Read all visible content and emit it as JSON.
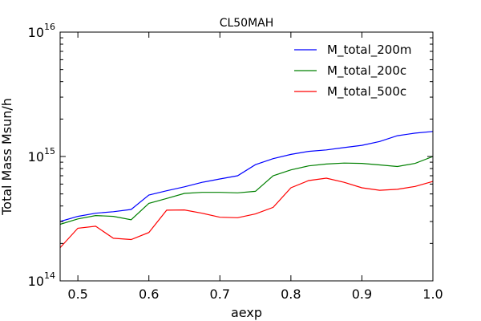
{
  "chart_data": {
    "type": "line",
    "title": "CL50MAH",
    "xlabel": "aexp",
    "ylabel": "Total Mass Msun/h",
    "xlim": [
      0.475,
      1.0
    ],
    "ylim": [
      100000000000000.0,
      1e+16
    ],
    "yscale": "log",
    "grid": false,
    "legend_position": "top-right",
    "x_ticks": [
      0.5,
      0.6,
      0.7,
      0.8,
      0.9,
      1.0
    ],
    "x_tick_labels": [
      "0.5",
      "0.6",
      "0.7",
      "0.8",
      "0.9",
      "1.0"
    ],
    "y_tick_labels": [
      {
        "base": "10",
        "exp": "14"
      },
      {
        "base": "10",
        "exp": "15"
      },
      {
        "base": "10",
        "exp": "16"
      }
    ],
    "x": [
      0.475,
      0.5,
      0.525,
      0.55,
      0.575,
      0.6,
      0.625,
      0.65,
      0.675,
      0.7,
      0.725,
      0.75,
      0.775,
      0.8,
      0.825,
      0.85,
      0.875,
      0.9,
      0.925,
      0.95,
      0.975,
      1.0
    ],
    "series": [
      {
        "name": "M_total_200m",
        "color": "#0000ff",
        "values": [
          300000000000000.0,
          330000000000000.0,
          350000000000000.0,
          360000000000000.0,
          375000000000000.0,
          490000000000000.0,
          530000000000000.0,
          570000000000000.0,
          620000000000000.0,
          660000000000000.0,
          700000000000000.0,
          860000000000000.0,
          960000000000000.0,
          1040000000000000.0,
          1100000000000000.0,
          1130000000000000.0,
          1180000000000000.0,
          1230000000000000.0,
          1320000000000000.0,
          1470000000000000.0,
          1540000000000000.0,
          1590000000000000.0
        ]
      },
      {
        "name": "M_total_200c",
        "color": "#008000",
        "values": [
          285000000000000.0,
          315000000000000.0,
          335000000000000.0,
          330000000000000.0,
          310000000000000.0,
          420000000000000.0,
          460000000000000.0,
          505000000000000.0,
          515000000000000.0,
          515000000000000.0,
          510000000000000.0,
          525000000000000.0,
          700000000000000.0,
          780000000000000.0,
          840000000000000.0,
          870000000000000.0,
          885000000000000.0,
          880000000000000.0,
          855000000000000.0,
          830000000000000.0,
          880000000000000.0,
          1000000000000000.0
        ]
      },
      {
        "name": "M_total_500c",
        "color": "#ff0000",
        "values": [
          185000000000000.0,
          265000000000000.0,
          275000000000000.0,
          220000000000000.0,
          215000000000000.0,
          245000000000000.0,
          370000000000000.0,
          372000000000000.0,
          350000000000000.0,
          325000000000000.0,
          322000000000000.0,
          345000000000000.0,
          390000000000000.0,
          560000000000000.0,
          640000000000000.0,
          670000000000000.0,
          620000000000000.0,
          560000000000000.0,
          535000000000000.0,
          545000000000000.0,
          575000000000000.0,
          630000000000000.0
        ]
      }
    ]
  }
}
